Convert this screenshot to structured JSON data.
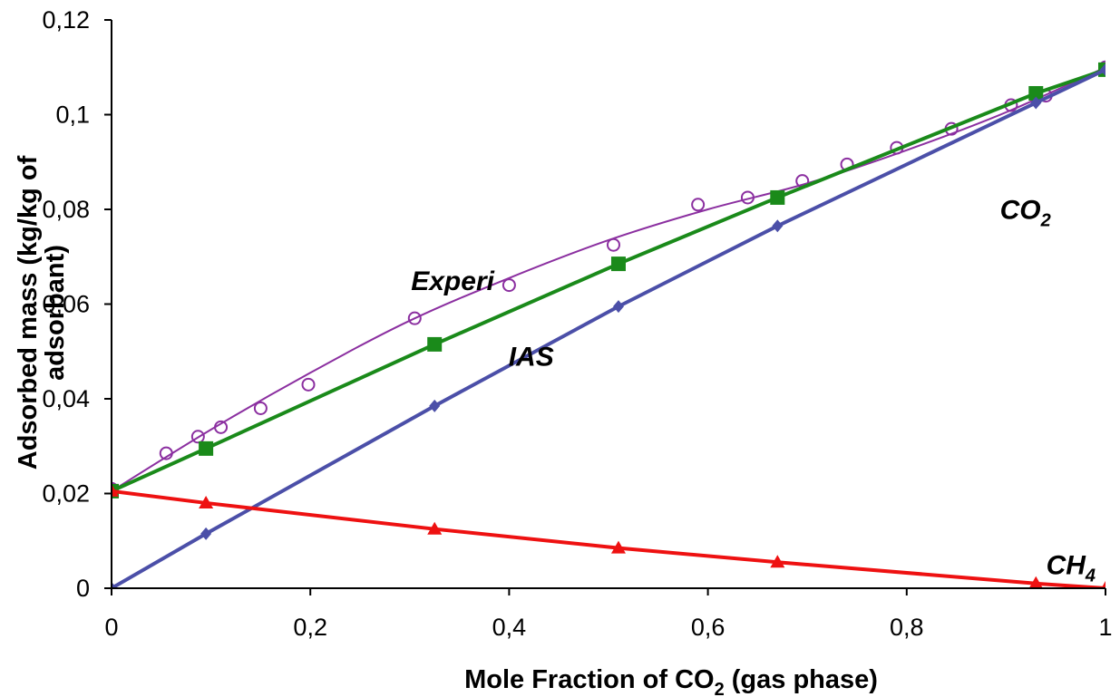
{
  "chart_data": {
    "type": "line",
    "xlabel": "Mole Fraction of CO",
    "xlabel_sub": "2",
    "xlabel_suffix": " (gas phase)",
    "ylabel_line1": "Adsorbed mass (kg/kg of",
    "ylabel_line2": "adsorbant)",
    "xlim": [
      0,
      1
    ],
    "ylim": [
      0,
      0.12
    ],
    "x_ticks": [
      "0",
      "0,2",
      "0,4",
      "0,6",
      "0,8",
      "1"
    ],
    "x_tick_values": [
      0,
      0.2,
      0.4,
      0.6,
      0.8,
      1
    ],
    "y_ticks": [
      "0",
      "0,02",
      "0,04",
      "0,06",
      "0,08",
      "0,1",
      "0,12"
    ],
    "y_tick_values": [
      0,
      0.02,
      0.04,
      0.06,
      0.08,
      0.1,
      0.12
    ],
    "grid": false,
    "annotations": [
      {
        "text": "Experi",
        "sub": "",
        "x": 0.385,
        "y": 0.063
      },
      {
        "text": "IAS",
        "sub": "",
        "x": 0.445,
        "y": 0.047
      },
      {
        "text": "CO",
        "sub": "2",
        "x": 0.945,
        "y": 0.078
      },
      {
        "text": "CH",
        "sub": "4",
        "x": 0.99,
        "y": 0.003
      }
    ],
    "series": [
      {
        "marker": "open-circle",
        "style": "markers-with-fitted-curve",
        "color": "#8B2FA0",
        "x": [
          0.0,
          0.055,
          0.087,
          0.11,
          0.15,
          0.198,
          0.305,
          0.4,
          0.505,
          0.59,
          0.64,
          0.695,
          0.74,
          0.79,
          0.845,
          0.905,
          0.94,
          1.0
        ],
        "y": [
          0.021,
          0.0285,
          0.032,
          0.034,
          0.038,
          0.043,
          0.057,
          0.064,
          0.0725,
          0.081,
          0.0825,
          0.086,
          0.0895,
          0.093,
          0.097,
          0.102,
          0.104,
          0.11
        ],
        "curve_x": [
          0,
          0.1,
          0.2,
          0.3,
          0.4,
          0.5,
          0.6,
          0.7,
          0.8,
          0.9,
          1.0
        ],
        "curve_y": [
          0.0205,
          0.0335,
          0.0455,
          0.0565,
          0.0655,
          0.0735,
          0.08,
          0.0855,
          0.0925,
          0.1005,
          0.11
        ]
      },
      {
        "marker": "square",
        "color": "#1A8A1A",
        "x": [
          0.0,
          0.095,
          0.325,
          0.51,
          0.67,
          0.93,
          1.0
        ],
        "y": [
          0.0205,
          0.0295,
          0.0515,
          0.0685,
          0.0825,
          0.1045,
          0.1095
        ]
      },
      {
        "marker": "diamond",
        "color": "#4B4FA8",
        "x": [
          0.0,
          0.095,
          0.325,
          0.51,
          0.67,
          0.93,
          1.0
        ],
        "y": [
          0.0,
          0.0115,
          0.0385,
          0.0595,
          0.0765,
          0.1025,
          0.1095
        ]
      },
      {
        "marker": "triangle",
        "color": "#EE1111",
        "x": [
          0.0,
          0.095,
          0.325,
          0.51,
          0.67,
          0.93,
          1.0
        ],
        "y": [
          0.0205,
          0.018,
          0.0125,
          0.0085,
          0.0055,
          0.001,
          0.0
        ]
      }
    ]
  }
}
